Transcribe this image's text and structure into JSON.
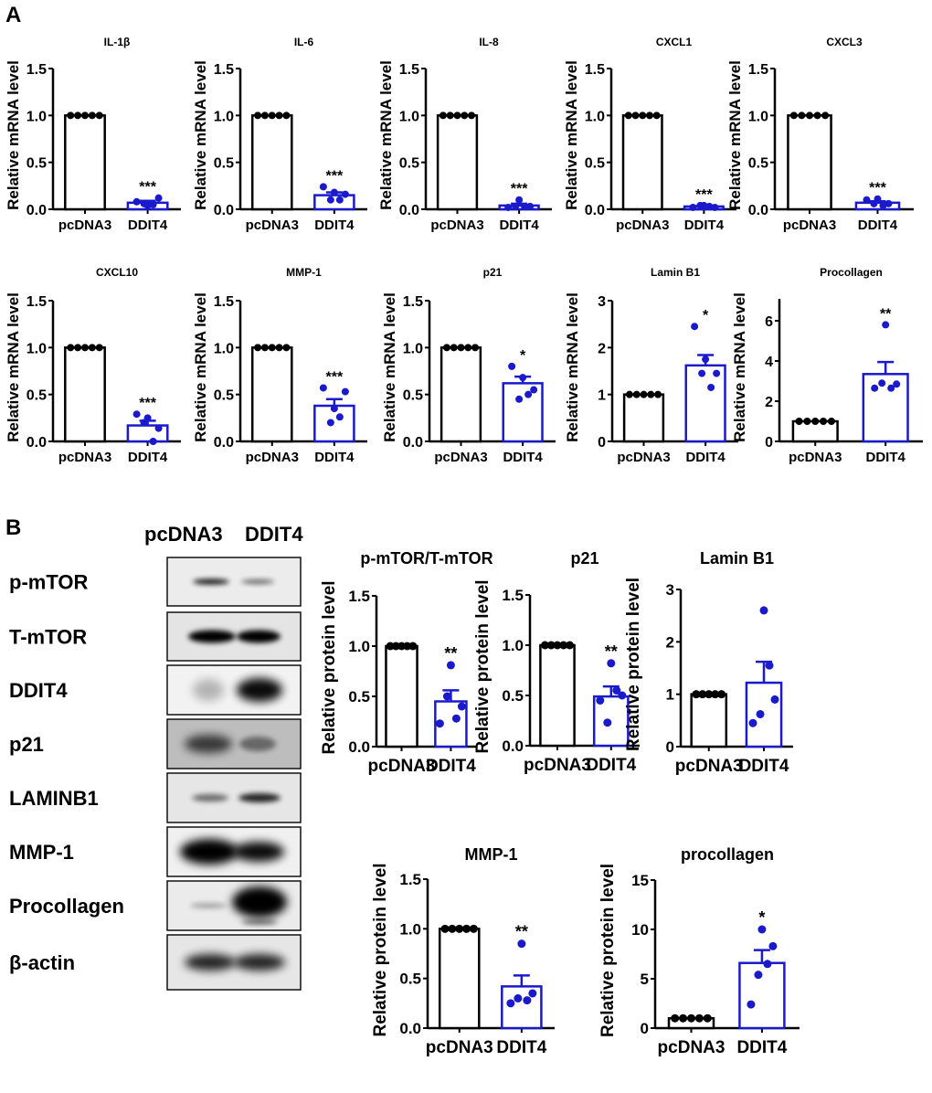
{
  "panel_labels": {
    "a": "A",
    "b": "B"
  },
  "colors": {
    "control": "#000000",
    "ddit4": "#1a1acc",
    "significance": "#333333"
  },
  "blot": {
    "column_labels": [
      "pcDNA3",
      "DDIT4"
    ],
    "row_labels": [
      "p-mTOR",
      "T-mTOR",
      "DDIT4",
      "p21",
      "LAMINB1",
      "MMP-1",
      "Procollagen",
      "β-actin"
    ]
  },
  "chart_data": [
    {
      "panel": "A",
      "type": "bar",
      "title": "IL-1β",
      "ylabel": "Relative mRNA level",
      "categories": [
        "pcDNA3",
        "DDIT4"
      ],
      "ylim": [
        0,
        1.5
      ],
      "yticks": [
        "0.0",
        "0.5",
        "1.0",
        "1.5"
      ],
      "significance": "***",
      "bars": [
        {
          "mean": 1.0,
          "sem": 0,
          "points": [
            1,
            1,
            1,
            1,
            1
          ]
        },
        {
          "mean": 0.07,
          "sem": 0.02,
          "points": [
            0.08,
            0.06,
            0.04,
            0.05,
            0.12
          ]
        }
      ]
    },
    {
      "panel": "A",
      "type": "bar",
      "title": "IL-6",
      "ylabel": "Relative mRNA level",
      "categories": [
        "pcDNA3",
        "DDIT4"
      ],
      "ylim": [
        0,
        1.5
      ],
      "yticks": [
        "0.0",
        "0.5",
        "1.0",
        "1.5"
      ],
      "significance": "***",
      "bars": [
        {
          "mean": 1.0,
          "sem": 0,
          "points": [
            1,
            1,
            1,
            1,
            1
          ]
        },
        {
          "mean": 0.15,
          "sem": 0.03,
          "points": [
            0.24,
            0.1,
            0.18,
            0.1,
            0.16
          ]
        }
      ]
    },
    {
      "panel": "A",
      "type": "bar",
      "title": "IL-8",
      "ylabel": "Relative mRNA level",
      "categories": [
        "pcDNA3",
        "DDIT4"
      ],
      "ylim": [
        0,
        1.5
      ],
      "yticks": [
        "0.0",
        "0.5",
        "1.0",
        "1.5"
      ],
      "significance": "***",
      "bars": [
        {
          "mean": 1.0,
          "sem": 0,
          "points": [
            1,
            1,
            1,
            1,
            1
          ]
        },
        {
          "mean": 0.04,
          "sem": 0.02,
          "points": [
            0.02,
            0.03,
            0.1,
            0.03,
            0.03
          ]
        }
      ]
    },
    {
      "panel": "A",
      "type": "bar",
      "title": "CXCL1",
      "ylabel": "Relative mRNA level",
      "categories": [
        "pcDNA3",
        "DDIT4"
      ],
      "ylim": [
        0,
        1.5
      ],
      "yticks": [
        "0.0",
        "0.5",
        "1.0",
        "1.5"
      ],
      "significance": "***",
      "bars": [
        {
          "mean": 1.0,
          "sem": 0,
          "points": [
            1,
            1,
            1,
            1,
            1
          ]
        },
        {
          "mean": 0.03,
          "sem": 0.005,
          "points": [
            0.02,
            0.04,
            0.04,
            0.03,
            0.02
          ]
        }
      ]
    },
    {
      "panel": "A",
      "type": "bar",
      "title": "CXCL3",
      "ylabel": "Relative mRNA level",
      "categories": [
        "pcDNA3",
        "DDIT4"
      ],
      "ylim": [
        0,
        1.5
      ],
      "yticks": [
        "0.0",
        "0.5",
        "1.0",
        "1.5"
      ],
      "significance": "***",
      "bars": [
        {
          "mean": 1.0,
          "sem": 0,
          "points": [
            1,
            1,
            1,
            1,
            1
          ]
        },
        {
          "mean": 0.07,
          "sem": 0.015,
          "points": [
            0.1,
            0.06,
            0.11,
            0.04,
            0.06
          ]
        }
      ]
    },
    {
      "panel": "A",
      "type": "bar",
      "title": "CXCL10",
      "ylabel": "Relative mRNA level",
      "categories": [
        "pcDNA3",
        "DDIT4"
      ],
      "ylim": [
        0,
        1.5
      ],
      "yticks": [
        "0.0",
        "0.5",
        "1.0",
        "1.5"
      ],
      "significance": "***",
      "bars": [
        {
          "mean": 1.0,
          "sem": 0,
          "points": [
            1,
            1,
            1,
            1,
            1
          ]
        },
        {
          "mean": 0.17,
          "sem": 0.05,
          "points": [
            0.29,
            0.2,
            0.25,
            0.0,
            0.14
          ]
        }
      ]
    },
    {
      "panel": "A",
      "type": "bar",
      "title": "MMP-1",
      "ylabel": "Relative mRNA level",
      "categories": [
        "pcDNA3",
        "DDIT4"
      ],
      "ylim": [
        0,
        1.5
      ],
      "yticks": [
        "0.0",
        "0.5",
        "1.0",
        "1.5"
      ],
      "significance": "***",
      "bars": [
        {
          "mean": 1.0,
          "sem": 0,
          "points": [
            1,
            1,
            1,
            1,
            1
          ]
        },
        {
          "mean": 0.38,
          "sem": 0.07,
          "points": [
            0.57,
            0.2,
            0.35,
            0.26,
            0.53
          ]
        }
      ]
    },
    {
      "panel": "A",
      "type": "bar",
      "title": "p21",
      "ylabel": "Relative mRNA level",
      "categories": [
        "pcDNA3",
        "DDIT4"
      ],
      "ylim": [
        0,
        1.5
      ],
      "yticks": [
        "0.0",
        "0.5",
        "1.0",
        "1.5"
      ],
      "significance": "*",
      "bars": [
        {
          "mean": 1.0,
          "sem": 0,
          "points": [
            1,
            1,
            1,
            1,
            1
          ]
        },
        {
          "mean": 0.62,
          "sem": 0.07,
          "points": [
            0.8,
            0.45,
            0.68,
            0.5,
            0.55
          ]
        }
      ]
    },
    {
      "panel": "A",
      "type": "bar",
      "title": "Lamin B1",
      "ylabel": "Relative mRNA level",
      "categories": [
        "pcDNA3",
        "DDIT4"
      ],
      "ylim": [
        0,
        3
      ],
      "yticks": [
        "0",
        "1",
        "2",
        "3"
      ],
      "significance": "*",
      "bars": [
        {
          "mean": 1.0,
          "sem": 0,
          "points": [
            1,
            1,
            1,
            1,
            1
          ]
        },
        {
          "mean": 1.62,
          "sem": 0.22,
          "points": [
            2.45,
            1.45,
            1.75,
            1.15,
            1.45
          ]
        }
      ]
    },
    {
      "panel": "A",
      "type": "bar",
      "title": "Procollagen",
      "ylabel": "Relative mRNA level",
      "categories": [
        "pcDNA3",
        "DDIT4"
      ],
      "ylim": [
        0,
        7
      ],
      "yticks": [
        "0",
        "2",
        "4",
        "6"
      ],
      "yticks_values": [
        0,
        2,
        4,
        6
      ],
      "significance": "**",
      "bars": [
        {
          "mean": 1.0,
          "sem": 0,
          "points": [
            1,
            1,
            1,
            1,
            1
          ]
        },
        {
          "mean": 3.35,
          "sem": 0.6,
          "points": [
            2.65,
            2.9,
            5.8,
            2.65,
            2.85
          ]
        }
      ]
    },
    {
      "panel": "B",
      "type": "bar",
      "title": "p-mTOR/T-mTOR",
      "ylabel": "Relative protein level",
      "categories": [
        "pcDNA3",
        "DDIT4"
      ],
      "ylim": [
        0,
        1.5
      ],
      "yticks": [
        "0.0",
        "0.5",
        "1.0",
        "1.5"
      ],
      "significance": "**",
      "bars": [
        {
          "mean": 1.0,
          "sem": 0,
          "points": [
            1,
            1,
            1,
            1,
            1
          ]
        },
        {
          "mean": 0.45,
          "sem": 0.11,
          "points": [
            0.23,
            0.5,
            0.81,
            0.28,
            0.4
          ]
        }
      ]
    },
    {
      "panel": "B",
      "type": "bar",
      "title": "p21",
      "ylabel": "Relative protein level",
      "categories": [
        "pcDNA3",
        "DDIT4"
      ],
      "ylim": [
        0,
        1.5
      ],
      "yticks": [
        "0.0",
        "0.5",
        "1.0",
        "1.5"
      ],
      "significance": "**",
      "bars": [
        {
          "mean": 1.0,
          "sem": 0,
          "points": [
            1,
            1,
            1,
            1,
            1
          ]
        },
        {
          "mean": 0.49,
          "sem": 0.1,
          "points": [
            0.45,
            0.23,
            0.82,
            0.55,
            0.5
          ]
        }
      ]
    },
    {
      "panel": "B",
      "type": "bar",
      "title": "Lamin B1",
      "ylabel": "Relative protein level",
      "categories": [
        "pcDNA3",
        "DDIT4"
      ],
      "ylim": [
        0,
        3
      ],
      "yticks": [
        "0",
        "1",
        "2",
        "3"
      ],
      "significance": "",
      "bars": [
        {
          "mean": 1.0,
          "sem": 0,
          "points": [
            1,
            1,
            1,
            1,
            1
          ]
        },
        {
          "mean": 1.22,
          "sem": 0.4,
          "points": [
            0.45,
            0.62,
            2.6,
            1.55,
            0.9
          ]
        }
      ]
    },
    {
      "panel": "B",
      "type": "bar",
      "title": "MMP-1",
      "ylabel": "Relative protein level",
      "categories": [
        "pcDNA3",
        "DDIT4"
      ],
      "ylim": [
        0,
        1.5
      ],
      "yticks": [
        "0.0",
        "0.5",
        "1.0",
        "1.5"
      ],
      "significance": "**",
      "bars": [
        {
          "mean": 1.0,
          "sem": 0,
          "points": [
            1,
            1,
            1,
            1,
            1
          ]
        },
        {
          "mean": 0.42,
          "sem": 0.11,
          "points": [
            0.25,
            0.3,
            0.85,
            0.28,
            0.35
          ]
        }
      ]
    },
    {
      "panel": "B",
      "type": "bar",
      "title": "procollagen",
      "ylabel": "Relative protein level",
      "categories": [
        "pcDNA3",
        "DDIT4"
      ],
      "ylim": [
        0,
        15
      ],
      "yticks": [
        "0",
        "5",
        "10",
        "15"
      ],
      "significance": "*",
      "bars": [
        {
          "mean": 1.0,
          "sem": 0,
          "points": [
            1,
            1,
            1,
            1,
            1
          ]
        },
        {
          "mean": 6.6,
          "sem": 1.3,
          "points": [
            2.4,
            5.4,
            10,
            6.5,
            8.3
          ]
        }
      ]
    }
  ]
}
